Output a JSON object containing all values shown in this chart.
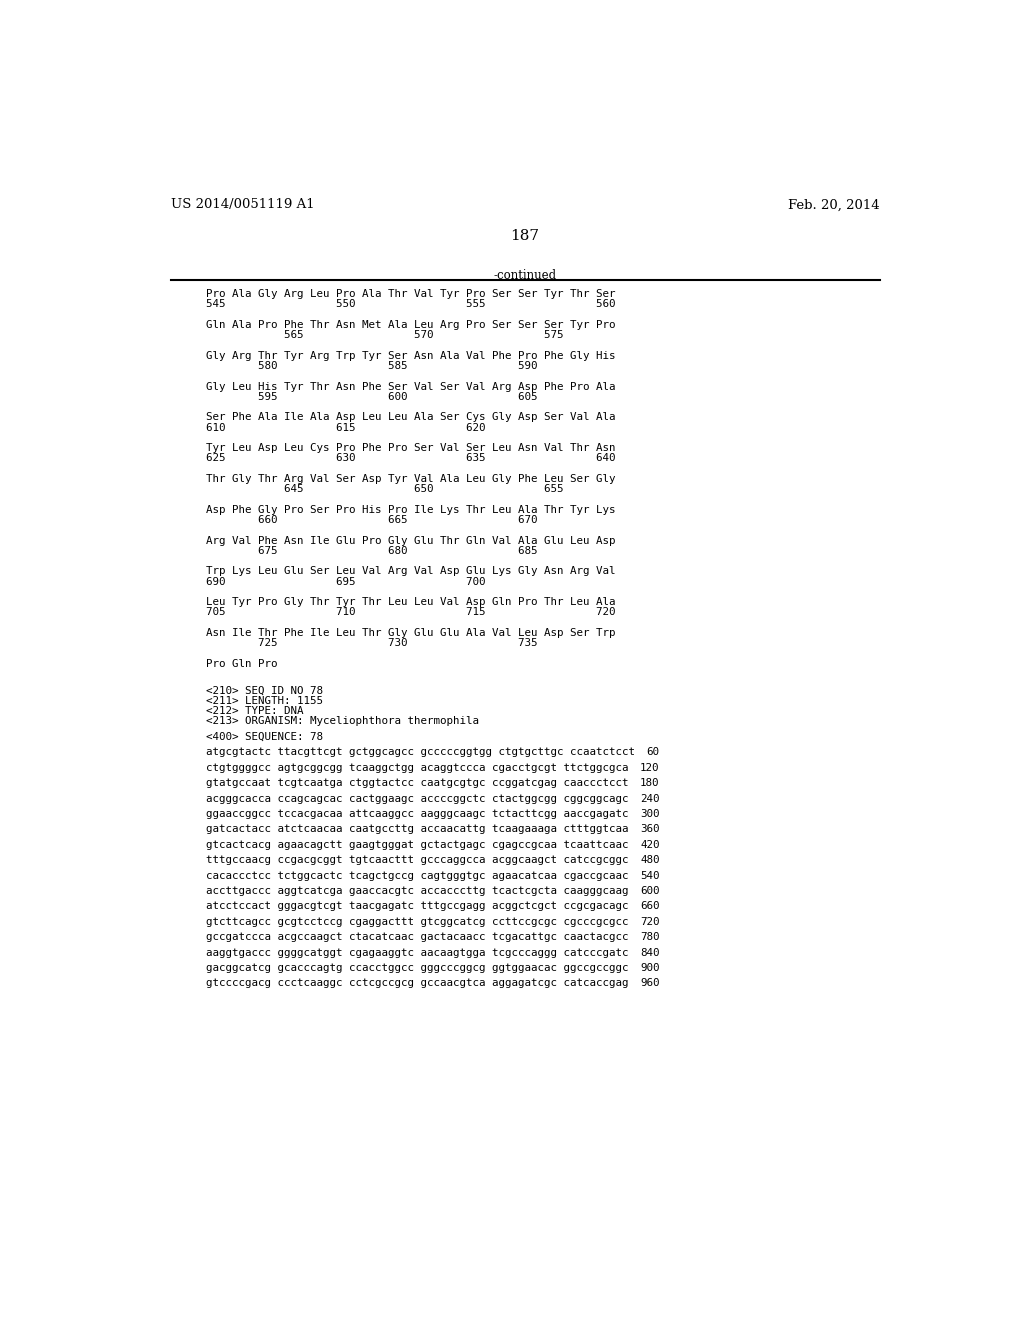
{
  "header_left": "US 2014/0051119 A1",
  "header_right": "Feb. 20, 2014",
  "page_number": "187",
  "continued_label": "-continued",
  "background_color": "#ffffff",
  "text_color": "#000000",
  "protein_blocks": [
    {
      "seq": "Pro Ala Gly Arg Leu Pro Ala Thr Val Tyr Pro Ser Ser Tyr Thr Ser",
      "num": "545                 550                 555                 560"
    },
    {
      "seq": "Gln Ala Pro Phe Thr Asn Met Ala Leu Arg Pro Ser Ser Ser Tyr Pro",
      "num": "            565                 570                 575"
    },
    {
      "seq": "Gly Arg Thr Tyr Arg Trp Tyr Ser Asn Ala Val Phe Pro Phe Gly His",
      "num": "        580                 585                 590"
    },
    {
      "seq": "Gly Leu His Tyr Thr Asn Phe Ser Val Ser Val Arg Asp Phe Pro Ala",
      "num": "        595                 600                 605"
    },
    {
      "seq": "Ser Phe Ala Ile Ala Asp Leu Leu Ala Ser Cys Gly Asp Ser Val Ala",
      "num": "610                 615                 620"
    },
    {
      "seq": "Tyr Leu Asp Leu Cys Pro Phe Pro Ser Val Ser Leu Asn Val Thr Asn",
      "num": "625                 630                 635                 640"
    },
    {
      "seq": "Thr Gly Thr Arg Val Ser Asp Tyr Val Ala Leu Gly Phe Leu Ser Gly",
      "num": "            645                 650                 655"
    },
    {
      "seq": "Asp Phe Gly Pro Ser Pro His Pro Ile Lys Thr Leu Ala Thr Tyr Lys",
      "num": "        660                 665                 670"
    },
    {
      "seq": "Arg Val Phe Asn Ile Glu Pro Gly Glu Thr Gln Val Ala Glu Leu Asp",
      "num": "        675                 680                 685"
    },
    {
      "seq": "Trp Lys Leu Glu Ser Leu Val Arg Val Asp Glu Lys Gly Asn Arg Val",
      "num": "690                 695                 700"
    },
    {
      "seq": "Leu Tyr Pro Gly Thr Tyr Thr Leu Leu Val Asp Gln Pro Thr Leu Ala",
      "num": "705                 710                 715                 720"
    },
    {
      "seq": "Asn Ile Thr Phe Ile Leu Thr Gly Glu Glu Ala Val Leu Asp Ser Trp",
      "num": "        725                 730                 735"
    },
    {
      "seq": "Pro Gln Pro",
      "num": ""
    }
  ],
  "seq_info": [
    "<210> SEQ ID NO 78",
    "<211> LENGTH: 1155",
    "<212> TYPE: DNA",
    "<213> ORGANISM: Myceliophthora thermophila"
  ],
  "seq_label": "<400> SEQUENCE: 78",
  "dna_lines": [
    [
      "atgcgtactc ttacgttcgt gctggcagcc gcccccggtgg ctgtgcttgc ccaatctcct",
      "60"
    ],
    [
      "ctgtggggcc agtgcggcgg tcaaggctgg acaggtccca cgacctgcgt ttctggcgca",
      "120"
    ],
    [
      "gtatgccaat tcgtcaatga ctggtactcc caatgcgtgc ccggatcgag caaccctcct",
      "180"
    ],
    [
      "acgggcacca ccagcagcac cactggaagc accccggctc ctactggcgg cggcggcagc",
      "240"
    ],
    [
      "ggaaccggcc tccacgacaa attcaaggcc aagggcaagc tctacttcgg aaccgagatc",
      "300"
    ],
    [
      "gatcactacc atctcaacaa caatgccttg accaacattg tcaagaaaga ctttggtcaa",
      "360"
    ],
    [
      "gtcactcacg agaacagctt gaagtgggat gctactgagc cgagccgcaa tcaattcaac",
      "420"
    ],
    [
      "tttgccaacg ccgacgcggt tgtcaacttt gcccaggcca acggcaagct catccgcggc",
      "480"
    ],
    [
      "cacaccctcc tctggcactc tcagctgccg cagtgggtgc agaacatcaa cgaccgcaac",
      "540"
    ],
    [
      "accttgaccc aggtcatcga gaaccacgtc accacccttg tcactcgcta caagggcaag",
      "600"
    ],
    [
      "atcctccact gggacgtcgt taacgagatc tttgccgagg acggctcgct ccgcgacagc",
      "660"
    ],
    [
      "gtcttcagcc gcgtcctccg cgaggacttt gtcggcatcg ccttccgcgc cgcccgcgcc",
      "720"
    ],
    [
      "gccgatccca acgccaagct ctacatcaac gactacaacc tcgacattgc caactacgcc",
      "780"
    ],
    [
      "aaggtgaccc ggggcatggt cgagaaggtc aacaagtgga tcgcccaggg catcccgatc",
      "840"
    ],
    [
      "gacggcatcg gcacccagtg ccacctggcc gggcccggcg ggtggaacac ggccgccggc",
      "900"
    ],
    [
      "gtccccgacg ccctcaaggc cctcgccgcg gccaacgtca aggagatcgc catcaccgag",
      "960"
    ]
  ]
}
